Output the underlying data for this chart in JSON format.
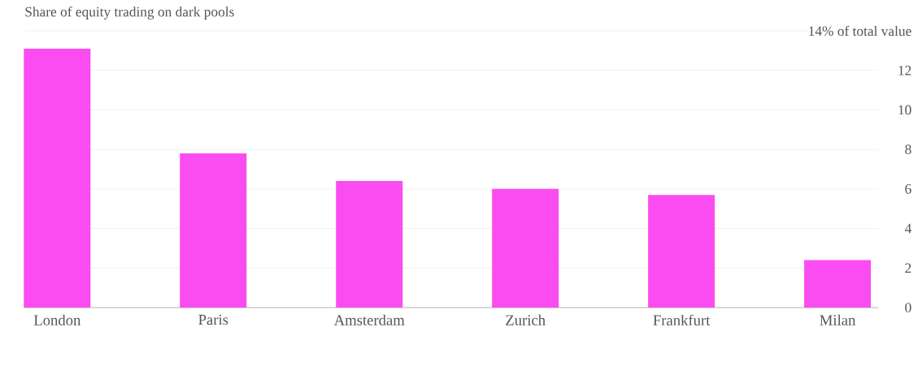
{
  "chart_data": {
    "type": "bar",
    "title": "Share of equity trading on dark pools",
    "categories": [
      "London",
      "Paris",
      "Amsterdam",
      "Zurich",
      "Frankfurt",
      "Milan"
    ],
    "values": [
      13.1,
      7.8,
      6.4,
      6.0,
      5.7,
      2.4
    ],
    "color": "#fa4cf0",
    "ylim": [
      0,
      14
    ],
    "yticks": [
      0,
      2,
      4,
      6,
      8,
      10,
      12,
      {
        "value": 14,
        "label": "14% of total value"
      }
    ],
    "grid": "y"
  }
}
